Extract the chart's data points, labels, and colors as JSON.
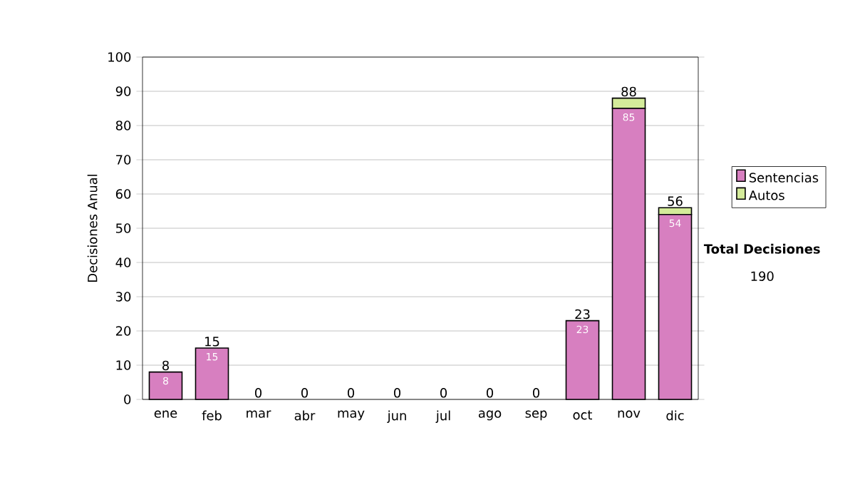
{
  "chart_data": {
    "type": "bar",
    "stacked": true,
    "ylabel": "Decisiones Anual",
    "categories": [
      "ene",
      "feb",
      "mar",
      "abr",
      "may",
      "jun",
      "jul",
      "ago",
      "sep",
      "oct",
      "nov",
      "dic"
    ],
    "series": [
      {
        "name": "Sentencias",
        "color": "#d77fc0",
        "values": [
          8,
          15,
          0,
          0,
          0,
          0,
          0,
          0,
          0,
          23,
          85,
          54
        ],
        "value_labels": [
          "8",
          "15",
          null,
          null,
          null,
          null,
          null,
          null,
          null,
          "23",
          "85",
          "54"
        ]
      },
      {
        "name": "Autos",
        "color": "#d4eb9a",
        "values": [
          0,
          0,
          0,
          0,
          0,
          0,
          0,
          0,
          0,
          0,
          3,
          2
        ]
      }
    ],
    "totals": [
      "8",
      "15",
      "0",
      "0",
      "0",
      "0",
      "0",
      "0",
      "0",
      "23",
      "88",
      "56"
    ],
    "ylim": [
      0,
      100
    ],
    "yticks": [
      0,
      10,
      20,
      30,
      40,
      50,
      60,
      70,
      80,
      90,
      100
    ],
    "grid": "y",
    "legend": "right",
    "annotations": [
      "Total Decisiones",
      "190"
    ]
  }
}
